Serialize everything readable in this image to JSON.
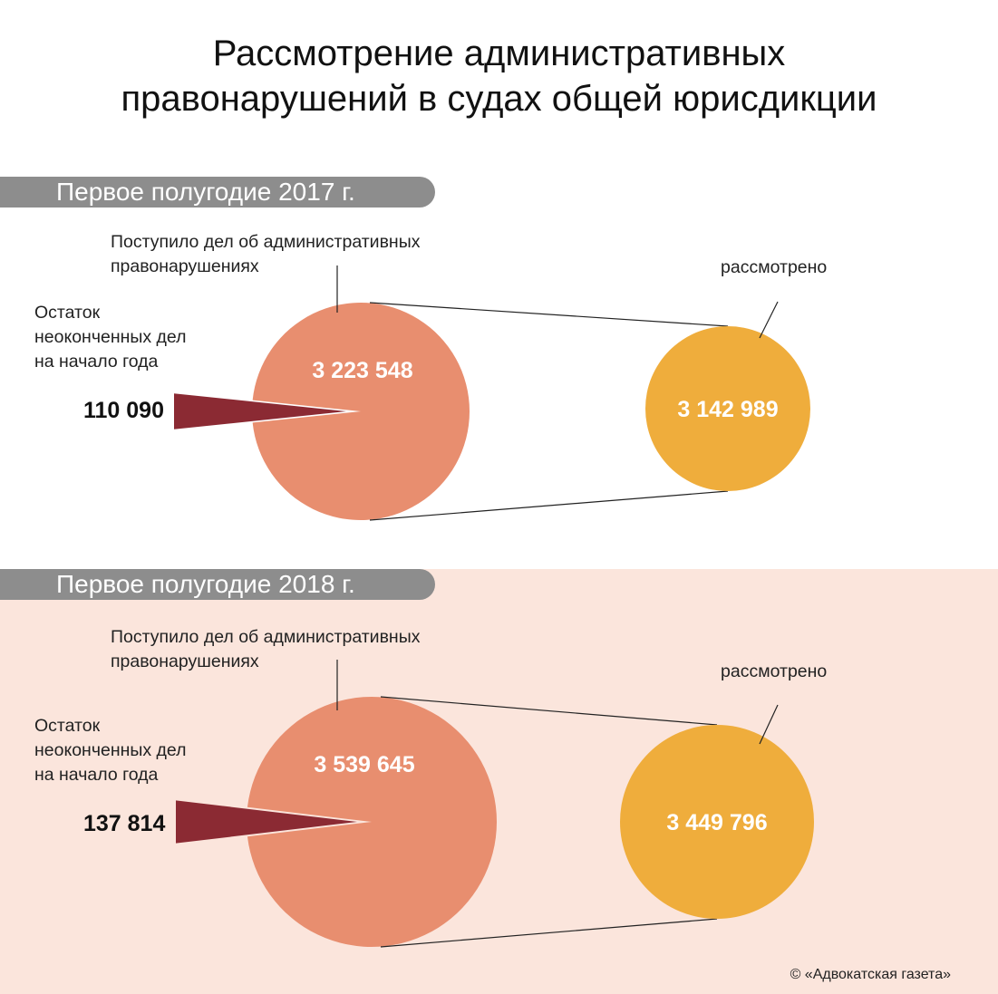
{
  "title_line1": "Рассмотрение административных",
  "title_line2": "правонарушений в судах общей юрисдикции",
  "credit": "© «Адвокатская газета»",
  "colors": {
    "received": "#e88e6f",
    "reviewed": "#efad3c",
    "remainder": "#8b2a33",
    "tab": "#8d8d8d",
    "panel_2018_bg": "#fbe5dc"
  },
  "chart_data": [
    {
      "type": "pie",
      "period": "Первое полугодие 2017 г.",
      "received_label_line1": "Поступило дел об административных",
      "received_label_line2": "правонарушениях",
      "remainder_label_line1": "Остаток",
      "remainder_label_line2": "неоконченных дел",
      "remainder_label_line3": "на начало года",
      "reviewed_label": "рассмотрено",
      "received": 3223548,
      "received_text": "3 223 548",
      "remainder": 110090,
      "remainder_text": "110 090",
      "reviewed": 3142989,
      "reviewed_text": "3 142 989"
    },
    {
      "type": "pie",
      "period": "Первое полугодие 2018 г.",
      "received_label_line1": "Поступило дел об административных",
      "received_label_line2": "правонарушениях",
      "remainder_label_line1": "Остаток",
      "remainder_label_line2": "неоконченных дел",
      "remainder_label_line3": "на начало года",
      "reviewed_label": "рассмотрено",
      "received": 3539645,
      "received_text": "3 539 645",
      "remainder": 137814,
      "remainder_text": "137 814",
      "reviewed": 3449796,
      "reviewed_text": "3 449 796"
    }
  ]
}
